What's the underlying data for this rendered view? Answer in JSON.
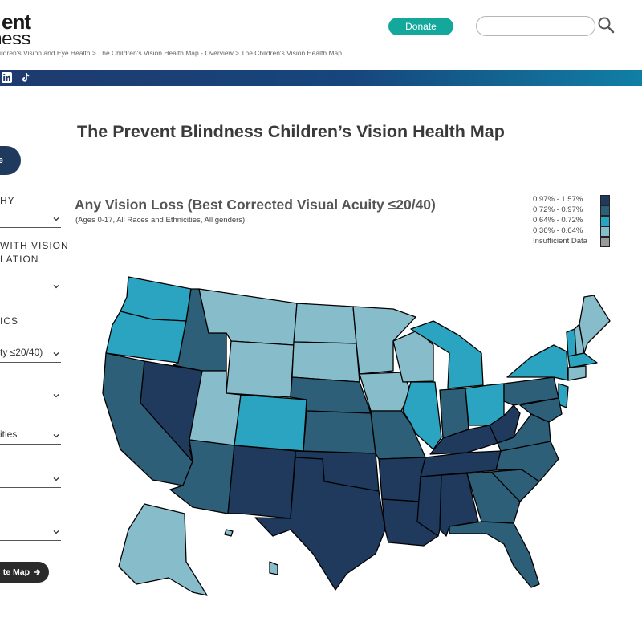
{
  "header": {
    "logo_line1": "ent",
    "logo_line2": "ness",
    "donate_label": "Donate",
    "search_placeholder": ""
  },
  "breadcrumb": "ildren's Vision and Eye Health > The Children's Vision Health Map - Overview > The Children's Vision Health Map",
  "social": [
    "linkedin-icon",
    "tiktok-icon"
  ],
  "sidebar": {
    "pill_label": "e",
    "sections": [
      {
        "label": "HY",
        "select": ""
      },
      {
        "label": "WITH VISION\nLATION",
        "select": ""
      },
      {
        "label": "ICS",
        "select": "ty ≤20/40)"
      },
      {
        "label": "",
        "select": ""
      },
      {
        "label": "",
        "select": "ities"
      },
      {
        "label": "",
        "select": ""
      },
      {
        "label": "",
        "select": ""
      }
    ],
    "update_label": "te Map"
  },
  "main": {
    "page_title": "The Prevent Blindness Children’s Vision Health Map",
    "map_title": "Any Vision Loss (Best Corrected Visual Acuity ≤20/40)",
    "map_subtitle": "(Ages 0-17, All Races and Ethnicities, All genders)"
  },
  "legend": [
    {
      "label": "0.97% - 1.57%",
      "color": "#1f3a5c"
    },
    {
      "label": "0.72% - 0.97%",
      "color": "#2d5f78"
    },
    {
      "label": "0.64% - 0.72%",
      "color": "#2aa4c0"
    },
    {
      "label": "0.36% - 0.64%",
      "color": "#87bdcb"
    },
    {
      "label": "Insufficient Data",
      "color": "#9a9a9a"
    }
  ],
  "colors": {
    "brand_teal": "#14a89d",
    "bar_gradient_start": "#1f3a6e",
    "bar_gradient_end": "#117fa4"
  }
}
